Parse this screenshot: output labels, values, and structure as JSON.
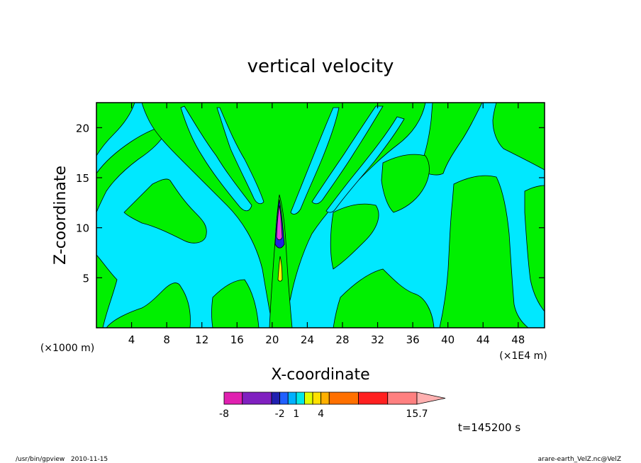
{
  "chart_data": {
    "type": "heatmap",
    "title": "vertical velocity",
    "xlabel": "X-coordinate",
    "ylabel": "Z-coordinate",
    "x_unit_left": "(×1000 m)",
    "x_unit_right": "(×1E4 m)",
    "x_ticks": [
      "4",
      "8",
      "12",
      "16",
      "20",
      "24",
      "28",
      "32",
      "36",
      "40",
      "44",
      "48"
    ],
    "y_ticks": [
      "5",
      "10",
      "15",
      "20"
    ],
    "xlim": [
      0,
      51
    ],
    "ylim": [
      0,
      22.5
    ],
    "time_label": "t=145200 s",
    "colorbar": {
      "tick_labels": [
        "-8",
        "-2",
        "1",
        "4",
        "15.7"
      ],
      "tick_values": [
        -8,
        -2,
        1,
        4,
        15.7
      ],
      "colors": [
        "#e020b0",
        "#8020c0",
        "#2020b0",
        "#2060ff",
        "#00b0ff",
        "#00e8e8",
        "#e0ff00",
        "#ffe000",
        "#ffb000",
        "#ff7000",
        "#ff2020",
        "#ff8080",
        "#ffb0b0"
      ],
      "bin_edges": [
        -8,
        -2,
        1,
        4,
        15.7
      ]
    },
    "legend_colors": {
      "background": "#00e8ff",
      "positive_region": "#00f000",
      "core_magenta": "#e040e0",
      "core_blue": "#2020e0",
      "core_yellow": "#f0f000"
    }
  },
  "footer": {
    "left": "/usr/bin/gpview   2010-11-15",
    "right": "arare-earth_VelZ.nc@VelZ"
  }
}
